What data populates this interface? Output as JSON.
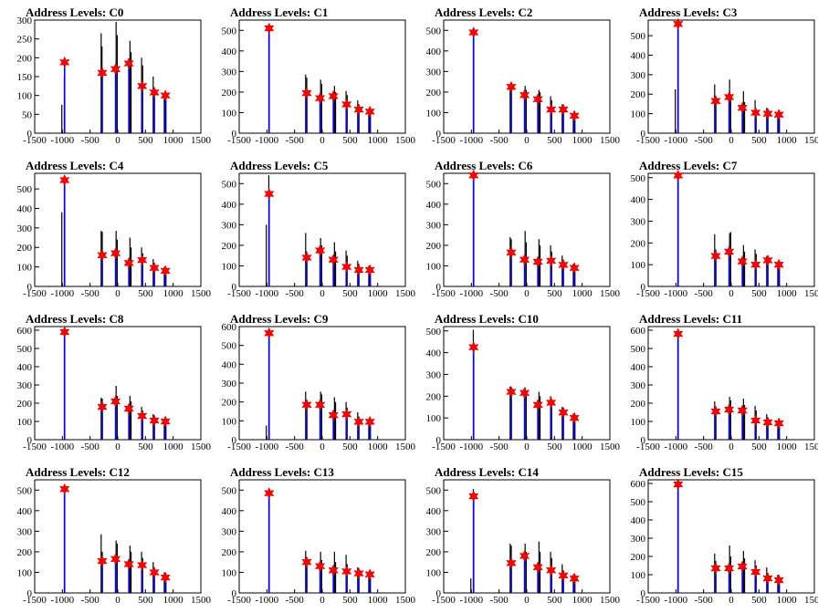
{
  "colors": {
    "histogram": "#000000",
    "peak_lines": "#0000ff",
    "markers": "#ff0000"
  },
  "chart_data": [
    {
      "type": "bar",
      "title": "Address Levels: C0",
      "xlim": [
        -1500,
        1500
      ],
      "ylim": [
        0,
        300
      ],
      "xticks": [
        "-1500",
        "-1000",
        "-500",
        "0",
        "500",
        "1000",
        "1500"
      ],
      "yticks": [
        0,
        50,
        100,
        150,
        200,
        250,
        300
      ],
      "peaks_x": [
        -960,
        -280,
        -40,
        200,
        440,
        660,
        860
      ],
      "peaks_y": [
        188,
        160,
        170,
        185,
        125,
        108,
        100
      ],
      "hist_x": [
        -1010,
        -965,
        -300,
        -285,
        -30,
        -10,
        220,
        240,
        430,
        450,
        640,
        660,
        840,
        870
      ],
      "hist_y": [
        75,
        150,
        265,
        230,
        295,
        260,
        245,
        215,
        200,
        180,
        150,
        120,
        105,
        95
      ]
    },
    {
      "type": "bar",
      "title": "Address Levels: C1",
      "xlim": [
        -1500,
        1500
      ],
      "ylim": [
        0,
        550
      ],
      "xticks": [
        "-1500",
        "-1000",
        "-500",
        "0",
        "500",
        "1000",
        "1500"
      ],
      "yticks": [
        0,
        100,
        200,
        300,
        400,
        500
      ],
      "peaks_x": [
        -960,
        -280,
        -40,
        200,
        440,
        660,
        860
      ],
      "peaks_y": [
        510,
        195,
        170,
        180,
        140,
        115,
        105
      ],
      "hist_x": [
        -965,
        -300,
        -280,
        -30,
        -10,
        220,
        240,
        430,
        450,
        640,
        660,
        840,
        870
      ],
      "hist_y": [
        520,
        285,
        270,
        260,
        240,
        230,
        200,
        205,
        185,
        160,
        140,
        120,
        105
      ]
    },
    {
      "type": "bar",
      "title": "Address Levels: C2",
      "xlim": [
        -1500,
        1500
      ],
      "ylim": [
        0,
        550
      ],
      "xticks": [
        "-1500",
        "-1000",
        "-500",
        "0",
        "500",
        "1000",
        "1500"
      ],
      "yticks": [
        0,
        100,
        200,
        300,
        400,
        500
      ],
      "peaks_x": [
        -960,
        -280,
        -40,
        200,
        440,
        660,
        860
      ],
      "peaks_y": [
        490,
        225,
        185,
        165,
        115,
        115,
        85
      ],
      "hist_x": [
        -965,
        -300,
        -280,
        -30,
        -10,
        220,
        240,
        430,
        450,
        640,
        660,
        840,
        870
      ],
      "hist_y": [
        495,
        240,
        225,
        230,
        210,
        210,
        200,
        180,
        160,
        140,
        125,
        95,
        85
      ]
    },
    {
      "type": "bar",
      "title": "Address Levels: C3",
      "xlim": [
        -1500,
        1500
      ],
      "ylim": [
        0,
        580
      ],
      "xticks": [
        "-1500",
        "-1000",
        "-500",
        "0",
        "500",
        "1000",
        "1500"
      ],
      "yticks": [
        0,
        100,
        200,
        300,
        400,
        500
      ],
      "peaks_x": [
        -960,
        -280,
        -40,
        200,
        440,
        660,
        860
      ],
      "peaks_y": [
        560,
        165,
        185,
        130,
        105,
        100,
        95
      ],
      "hist_x": [
        -1010,
        -965,
        -300,
        -280,
        -30,
        -10,
        220,
        240,
        430,
        450,
        640,
        660,
        840,
        870
      ],
      "hist_y": [
        225,
        570,
        250,
        170,
        275,
        200,
        215,
        160,
        170,
        120,
        130,
        105,
        105,
        95
      ]
    },
    {
      "type": "bar",
      "title": "Address Levels: C4",
      "xlim": [
        -1500,
        1500
      ],
      "ylim": [
        0,
        580
      ],
      "xticks": [
        "-1500",
        "-1000",
        "-500",
        "0",
        "500",
        "1000",
        "1500"
      ],
      "yticks": [
        0,
        100,
        200,
        300,
        400,
        500
      ],
      "peaks_x": [
        -960,
        -280,
        -40,
        200,
        440,
        660,
        860
      ],
      "peaks_y": [
        545,
        160,
        170,
        120,
        135,
        95,
        80
      ],
      "hist_x": [
        -1010,
        -965,
        -300,
        -280,
        -30,
        -10,
        220,
        240,
        430,
        450,
        640,
        660,
        840,
        870
      ],
      "hist_y": [
        380,
        555,
        285,
        280,
        285,
        240,
        250,
        200,
        200,
        170,
        140,
        120,
        100,
        85
      ]
    },
    {
      "type": "bar",
      "title": "Address Levels: C5",
      "xlim": [
        -1500,
        1500
      ],
      "ylim": [
        0,
        550
      ],
      "xticks": [
        "-1500",
        "-1000",
        "-500",
        "0",
        "500",
        "1000",
        "1500"
      ],
      "yticks": [
        0,
        100,
        200,
        300,
        400,
        500
      ],
      "peaks_x": [
        -960,
        -280,
        -40,
        200,
        440,
        660,
        860
      ],
      "peaks_y": [
        450,
        140,
        175,
        130,
        95,
        80,
        80
      ],
      "hist_x": [
        -1010,
        -965,
        -300,
        -280,
        -30,
        -10,
        220,
        240,
        430,
        450,
        640,
        660,
        840,
        870
      ],
      "hist_y": [
        300,
        540,
        260,
        170,
        235,
        200,
        215,
        170,
        175,
        150,
        125,
        110,
        100,
        90
      ]
    },
    {
      "type": "bar",
      "title": "Address Levels: C6",
      "xlim": [
        -1500,
        1500
      ],
      "ylim": [
        0,
        550
      ],
      "xticks": [
        "-1500",
        "-1000",
        "-500",
        "0",
        "500",
        "1000",
        "1500"
      ],
      "yticks": [
        0,
        100,
        200,
        300,
        400,
        500
      ],
      "peaks_x": [
        -960,
        -280,
        -40,
        200,
        440,
        660,
        860
      ],
      "peaks_y": [
        540,
        165,
        130,
        120,
        125,
        105,
        90
      ],
      "hist_x": [
        -965,
        -300,
        -280,
        -30,
        -10,
        220,
        240,
        430,
        450,
        640,
        660,
        840,
        870
      ],
      "hist_y": [
        545,
        240,
        230,
        270,
        215,
        230,
        200,
        200,
        170,
        150,
        125,
        110,
        95
      ]
    },
    {
      "type": "bar",
      "title": "Address Levels: C7",
      "xlim": [
        -1500,
        1500
      ],
      "ylim": [
        0,
        520
      ],
      "xticks": [
        "-1500",
        "-1000",
        "-500",
        "0",
        "500",
        "1000",
        "1500"
      ],
      "yticks": [
        0,
        100,
        200,
        300,
        400,
        500
      ],
      "peaks_x": [
        -960,
        -280,
        -40,
        200,
        440,
        660,
        860
      ],
      "peaks_y": [
        510,
        140,
        160,
        115,
        100,
        120,
        100
      ],
      "hist_x": [
        -965,
        -300,
        -280,
        -30,
        -10,
        220,
        240,
        430,
        450,
        640,
        660,
        840,
        870
      ],
      "hist_y": [
        515,
        240,
        170,
        245,
        250,
        190,
        160,
        170,
        150,
        140,
        130,
        110,
        100
      ]
    },
    {
      "type": "bar",
      "title": "Address Levels: C8",
      "xlim": [
        -1500,
        1500
      ],
      "ylim": [
        0,
        620
      ],
      "xticks": [
        "-1500",
        "-1000",
        "-500",
        "0",
        "500",
        "1000",
        "1500"
      ],
      "yticks": [
        0,
        100,
        200,
        300,
        400,
        500,
        600
      ],
      "peaks_x": [
        -960,
        -280,
        -40,
        200,
        440,
        660,
        860
      ],
      "peaks_y": [
        590,
        180,
        210,
        170,
        130,
        105,
        100
      ],
      "hist_x": [
        -965,
        -300,
        -280,
        -30,
        -10,
        220,
        240,
        430,
        450,
        640,
        660,
        840,
        870
      ],
      "hist_y": [
        595,
        230,
        225,
        295,
        240,
        240,
        210,
        180,
        160,
        140,
        125,
        110,
        100
      ]
    },
    {
      "type": "bar",
      "title": "Address Levels: C9",
      "xlim": [
        -1500,
        1500
      ],
      "ylim": [
        0,
        600
      ],
      "xticks": [
        "-1500",
        "-1000",
        "-500",
        "0",
        "500",
        "1000",
        "1500"
      ],
      "yticks": [
        0,
        100,
        200,
        300,
        400,
        500,
        600
      ],
      "peaks_x": [
        -960,
        -280,
        -40,
        200,
        440,
        660,
        860
      ],
      "peaks_y": [
        565,
        185,
        185,
        130,
        135,
        95,
        95
      ],
      "hist_x": [
        -1010,
        -965,
        -300,
        -280,
        -30,
        -10,
        220,
        240,
        430,
        450,
        640,
        660,
        840,
        870
      ],
      "hist_y": [
        75,
        580,
        255,
        200,
        255,
        240,
        225,
        200,
        200,
        170,
        145,
        120,
        110,
        100
      ]
    },
    {
      "type": "bar",
      "title": "Address Levels: C10",
      "xlim": [
        -1500,
        1500
      ],
      "ylim": [
        0,
        520
      ],
      "xticks": [
        "-1500",
        "-1000",
        "-500",
        "0",
        "500",
        "1000",
        "1500"
      ],
      "yticks": [
        0,
        100,
        200,
        300,
        400,
        500
      ],
      "peaks_x": [
        -960,
        -280,
        -40,
        200,
        440,
        660,
        860
      ],
      "peaks_y": [
        425,
        220,
        215,
        160,
        170,
        125,
        100
      ],
      "hist_x": [
        -965,
        -300,
        -280,
        -30,
        -10,
        220,
        240,
        430,
        450,
        640,
        660,
        840,
        870
      ],
      "hist_y": [
        505,
        245,
        235,
        240,
        225,
        220,
        200,
        200,
        180,
        150,
        140,
        120,
        105
      ]
    },
    {
      "type": "bar",
      "title": "Address Levels: C11",
      "xlim": [
        -1500,
        1500
      ],
      "ylim": [
        0,
        620
      ],
      "xticks": [
        "-1500",
        "-1000",
        "-500",
        "0",
        "500",
        "1000",
        "1500"
      ],
      "yticks": [
        0,
        100,
        200,
        300,
        400,
        500,
        600
      ],
      "peaks_x": [
        -960,
        -280,
        -40,
        200,
        440,
        660,
        860
      ],
      "peaks_y": [
        580,
        155,
        165,
        160,
        105,
        95,
        90
      ],
      "hist_x": [
        -965,
        -300,
        -280,
        -30,
        -10,
        220,
        240,
        430,
        450,
        640,
        660,
        840,
        870
      ],
      "hist_y": [
        590,
        210,
        180,
        235,
        215,
        225,
        190,
        185,
        160,
        140,
        120,
        105,
        95
      ]
    },
    {
      "type": "bar",
      "title": "Address Levels: C12",
      "xlim": [
        -1500,
        1500
      ],
      "ylim": [
        0,
        550
      ],
      "xticks": [
        "-1500",
        "-1000",
        "-500",
        "0",
        "500",
        "1000",
        "1500"
      ],
      "yticks": [
        0,
        100,
        200,
        300,
        400,
        500
      ],
      "peaks_x": [
        -960,
        -280,
        -40,
        200,
        440,
        660,
        860
      ],
      "peaks_y": [
        505,
        155,
        165,
        140,
        135,
        100,
        75
      ],
      "hist_x": [
        -965,
        -300,
        -280,
        -30,
        -10,
        220,
        240,
        430,
        450,
        640,
        660,
        840,
        870
      ],
      "hist_y": [
        515,
        285,
        200,
        255,
        240,
        230,
        200,
        200,
        170,
        150,
        120,
        100,
        80
      ]
    },
    {
      "type": "bar",
      "title": "Address Levels: C13",
      "xlim": [
        -1500,
        1500
      ],
      "ylim": [
        0,
        550
      ],
      "xticks": [
        "-1500",
        "-1000",
        "-500",
        "0",
        "500",
        "1000",
        "1500"
      ],
      "yticks": [
        0,
        100,
        200,
        300,
        400,
        500
      ],
      "peaks_x": [
        -960,
        -280,
        -40,
        200,
        440,
        660,
        860
      ],
      "peaks_y": [
        485,
        150,
        130,
        110,
        105,
        95,
        90
      ],
      "hist_x": [
        -965,
        -300,
        -280,
        -30,
        -10,
        220,
        240,
        430,
        450,
        640,
        660,
        840,
        870
      ],
      "hist_y": [
        495,
        205,
        160,
        200,
        160,
        200,
        150,
        185,
        140,
        125,
        115,
        100,
        95
      ]
    },
    {
      "type": "bar",
      "title": "Address Levels: C14",
      "xlim": [
        -1500,
        1500
      ],
      "ylim": [
        0,
        550
      ],
      "xticks": [
        "-1500",
        "-1000",
        "-500",
        "0",
        "500",
        "1000",
        "1500"
      ],
      "yticks": [
        0,
        100,
        200,
        300,
        400,
        500
      ],
      "peaks_x": [
        -960,
        -280,
        -40,
        200,
        440,
        660,
        860
      ],
      "peaks_y": [
        470,
        145,
        180,
        125,
        110,
        85,
        70
      ],
      "hist_x": [
        -1010,
        -965,
        -300,
        -280,
        -30,
        -10,
        220,
        240,
        430,
        450,
        640,
        660,
        840,
        870
      ],
      "hist_y": [
        70,
        505,
        240,
        230,
        240,
        200,
        250,
        200,
        200,
        170,
        140,
        110,
        90,
        75
      ]
    },
    {
      "type": "bar",
      "title": "Address Levels: C15",
      "xlim": [
        -1500,
        1500
      ],
      "ylim": [
        0,
        620
      ],
      "xticks": [
        "-1500",
        "-1000",
        "-500",
        "0",
        "500",
        "1000",
        "1500"
      ],
      "yticks": [
        0,
        100,
        200,
        300,
        400,
        500,
        600
      ],
      "peaks_x": [
        -960,
        -280,
        -40,
        200,
        440,
        660,
        860
      ],
      "peaks_y": [
        595,
        135,
        135,
        145,
        115,
        80,
        70
      ],
      "hist_x": [
        -965,
        -300,
        -280,
        -30,
        -10,
        220,
        240,
        430,
        450,
        640,
        660,
        840,
        870
      ],
      "hist_y": [
        600,
        215,
        175,
        260,
        200,
        230,
        190,
        180,
        150,
        140,
        110,
        100,
        80
      ]
    }
  ]
}
